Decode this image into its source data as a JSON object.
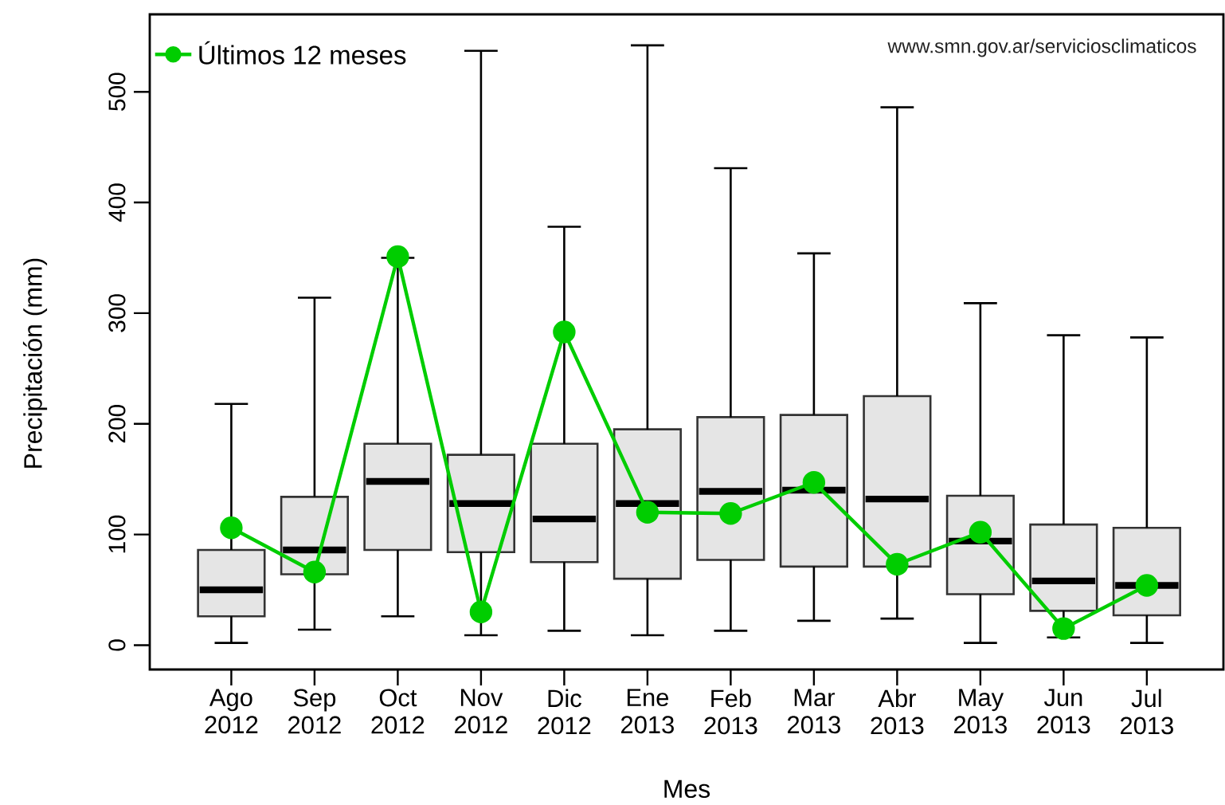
{
  "chart_data": {
    "type": "box",
    "xlabel": "Mes",
    "ylabel": "Precipitación (mm)",
    "annotations": [
      "www.smn.gov.ar/serviciosclimaticos"
    ],
    "categories": [
      "Ago 2012",
      "Sep 2012",
      "Oct 2012",
      "Nov 2012",
      "Dic 2012",
      "Ene 2013",
      "Feb 2013",
      "Mar 2013",
      "Abr 2013",
      "May 2013",
      "Jun 2013",
      "Jul 2013"
    ],
    "ylim": [
      -22,
      570
    ],
    "yticks": [
      0,
      100,
      200,
      300,
      400,
      500
    ],
    "legend": "top left",
    "series": [
      {
        "color": "#e5e5e5",
        "boxes": [
          {
            "low": 2,
            "q1": 26,
            "median": 50,
            "q3": 86,
            "high": 218
          },
          {
            "low": 14,
            "q1": 64,
            "median": 86,
            "q3": 134,
            "high": 314
          },
          {
            "low": 26,
            "q1": 86,
            "median": 148,
            "q3": 182,
            "high": 350
          },
          {
            "low": 9,
            "q1": 84,
            "median": 128,
            "q3": 172,
            "high": 537
          },
          {
            "low": 13,
            "q1": 75,
            "median": 114,
            "q3": 182,
            "high": 378
          },
          {
            "low": 9,
            "q1": 60,
            "median": 128,
            "q3": 195,
            "high": 542
          },
          {
            "low": 13,
            "q1": 77,
            "median": 139,
            "q3": 206,
            "high": 431
          },
          {
            "low": 22,
            "q1": 71,
            "median": 140,
            "q3": 208,
            "high": 354
          },
          {
            "low": 24,
            "q1": 71,
            "median": 132,
            "q3": 225,
            "high": 486
          },
          {
            "low": 2,
            "q1": 46,
            "median": 94,
            "q3": 135,
            "high": 309
          },
          {
            "low": 7,
            "q1": 31,
            "median": 58,
            "q3": 109,
            "high": 280
          },
          {
            "low": 2,
            "q1": 27,
            "median": 54,
            "q3": 106,
            "high": 278
          }
        ]
      },
      {
        "type": "line",
        "name": "Últimos 12 meses",
        "color": "#00cd00",
        "marker": "circle",
        "values": [
          106,
          66,
          351,
          30,
          283,
          120,
          119,
          147,
          73,
          102,
          15,
          54
        ]
      }
    ]
  }
}
